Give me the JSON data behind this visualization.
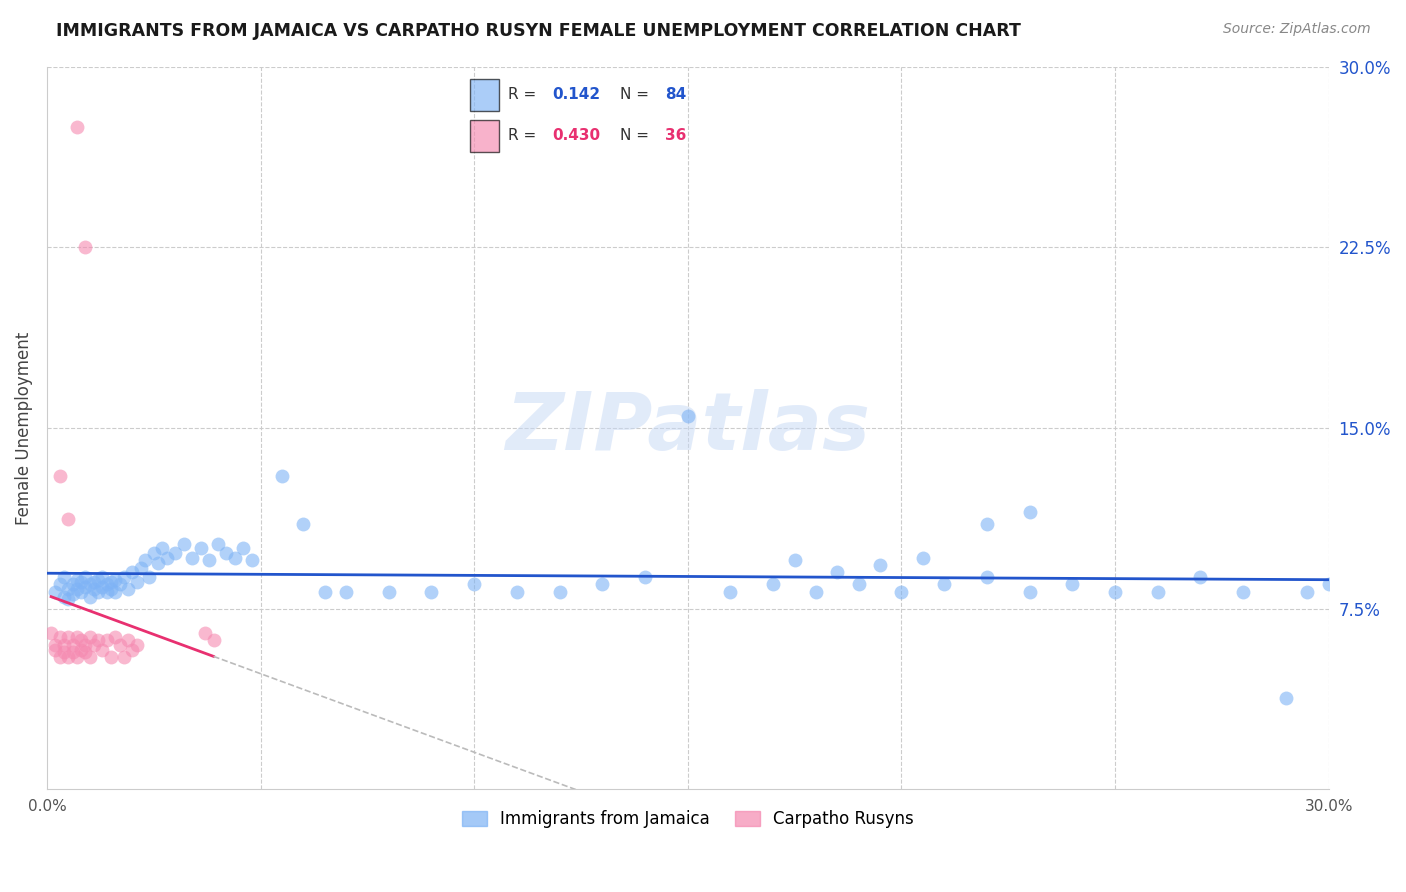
{
  "title": "IMMIGRANTS FROM JAMAICA VS CARPATHO RUSYN FEMALE UNEMPLOYMENT CORRELATION CHART",
  "source": "Source: ZipAtlas.com",
  "ylabel": "Female Unemployment",
  "xmin": 0.0,
  "xmax": 0.3,
  "ymin": 0.0,
  "ymax": 0.3,
  "blue_color": "#7eb3f5",
  "pink_color": "#f589b0",
  "blue_line_color": "#2255cc",
  "pink_line_color": "#e83070",
  "grid_color": "#cccccc",
  "watermark_color": "#c5d8f5",
  "watermark": "ZIPatlas",
  "legend_r_blue": "0.142",
  "legend_n_blue": "84",
  "legend_r_pink": "0.430",
  "legend_n_pink": "36",
  "blue_scatter_x": [
    0.002,
    0.003,
    0.004,
    0.004,
    0.005,
    0.005,
    0.006,
    0.006,
    0.007,
    0.007,
    0.008,
    0.008,
    0.009,
    0.009,
    0.01,
    0.01,
    0.011,
    0.011,
    0.012,
    0.012,
    0.013,
    0.013,
    0.014,
    0.014,
    0.015,
    0.015,
    0.016,
    0.016,
    0.017,
    0.018,
    0.019,
    0.02,
    0.021,
    0.022,
    0.023,
    0.024,
    0.025,
    0.026,
    0.027,
    0.028,
    0.03,
    0.032,
    0.034,
    0.036,
    0.038,
    0.04,
    0.042,
    0.044,
    0.046,
    0.048,
    0.055,
    0.06,
    0.065,
    0.07,
    0.08,
    0.09,
    0.1,
    0.11,
    0.12,
    0.13,
    0.14,
    0.15,
    0.16,
    0.17,
    0.18,
    0.19,
    0.2,
    0.21,
    0.22,
    0.23,
    0.24,
    0.25,
    0.26,
    0.27,
    0.28,
    0.29,
    0.295,
    0.3,
    0.22,
    0.23,
    0.175,
    0.185,
    0.195,
    0.205
  ],
  "blue_scatter_y": [
    0.082,
    0.085,
    0.08,
    0.088,
    0.083,
    0.079,
    0.085,
    0.081,
    0.087,
    0.083,
    0.086,
    0.082,
    0.084,
    0.088,
    0.085,
    0.08,
    0.086,
    0.083,
    0.087,
    0.082,
    0.084,
    0.088,
    0.085,
    0.082,
    0.086,
    0.083,
    0.087,
    0.082,
    0.085,
    0.088,
    0.083,
    0.09,
    0.086,
    0.092,
    0.095,
    0.088,
    0.098,
    0.094,
    0.1,
    0.096,
    0.098,
    0.102,
    0.096,
    0.1,
    0.095,
    0.102,
    0.098,
    0.096,
    0.1,
    0.095,
    0.13,
    0.11,
    0.082,
    0.082,
    0.082,
    0.082,
    0.085,
    0.082,
    0.082,
    0.085,
    0.088,
    0.155,
    0.082,
    0.085,
    0.082,
    0.085,
    0.082,
    0.085,
    0.088,
    0.082,
    0.085,
    0.082,
    0.082,
    0.088,
    0.082,
    0.038,
    0.082,
    0.085,
    0.11,
    0.115,
    0.095,
    0.09,
    0.093,
    0.096
  ],
  "pink_scatter_x": [
    0.001,
    0.002,
    0.002,
    0.003,
    0.003,
    0.004,
    0.004,
    0.005,
    0.005,
    0.006,
    0.006,
    0.007,
    0.007,
    0.008,
    0.008,
    0.009,
    0.009,
    0.01,
    0.01,
    0.011,
    0.012,
    0.013,
    0.014,
    0.015,
    0.016,
    0.017,
    0.018,
    0.019,
    0.02,
    0.021,
    0.037,
    0.039,
    0.003,
    0.005,
    0.007,
    0.009
  ],
  "pink_scatter_y": [
    0.065,
    0.06,
    0.058,
    0.063,
    0.055,
    0.06,
    0.057,
    0.063,
    0.055,
    0.06,
    0.057,
    0.063,
    0.055,
    0.062,
    0.058,
    0.06,
    0.057,
    0.063,
    0.055,
    0.06,
    0.062,
    0.058,
    0.062,
    0.055,
    0.063,
    0.06,
    0.055,
    0.062,
    0.058,
    0.06,
    0.065,
    0.062,
    0.13,
    0.112,
    0.275,
    0.225
  ]
}
